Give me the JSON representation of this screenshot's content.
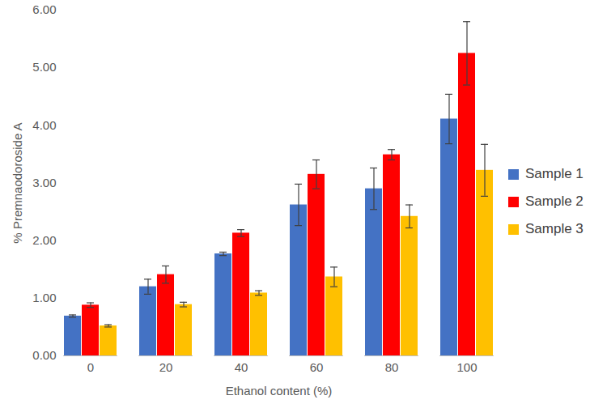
{
  "chart_data": {
    "type": "bar",
    "x_label": "Ethanol content (%)",
    "y_label": "% Premnaodoroside A",
    "categories": [
      0,
      20,
      40,
      60,
      80,
      100
    ],
    "series": [
      {
        "name": "Sample 1",
        "color": "#4472c4",
        "values": [
          0.69,
          1.2,
          1.77,
          2.62,
          2.9,
          4.11
        ],
        "errors": [
          0.02,
          0.13,
          0.03,
          0.36,
          0.36,
          0.43
        ]
      },
      {
        "name": "Sample 2",
        "color": "#ff0000",
        "values": [
          0.88,
          1.41,
          2.13,
          3.15,
          3.49,
          5.25
        ],
        "errors": [
          0.04,
          0.15,
          0.06,
          0.25,
          0.09,
          0.55
        ]
      },
      {
        "name": "Sample 3",
        "color": "#ffc000",
        "values": [
          0.52,
          0.89,
          1.09,
          1.37,
          2.42,
          3.22
        ],
        "errors": [
          0.02,
          0.04,
          0.04,
          0.17,
          0.2,
          0.45
        ]
      }
    ],
    "ylim": [
      0,
      6
    ],
    "yticks": [
      {
        "value": 0,
        "label": "0.00"
      },
      {
        "value": 1,
        "label": "1.00"
      },
      {
        "value": 2,
        "label": "2.00"
      },
      {
        "value": 3,
        "label": "3.00"
      },
      {
        "value": 4,
        "label": "4.00"
      },
      {
        "value": 5,
        "label": "5.00"
      },
      {
        "value": 6,
        "label": "6.00"
      }
    ],
    "grid": false,
    "legend": "right"
  }
}
